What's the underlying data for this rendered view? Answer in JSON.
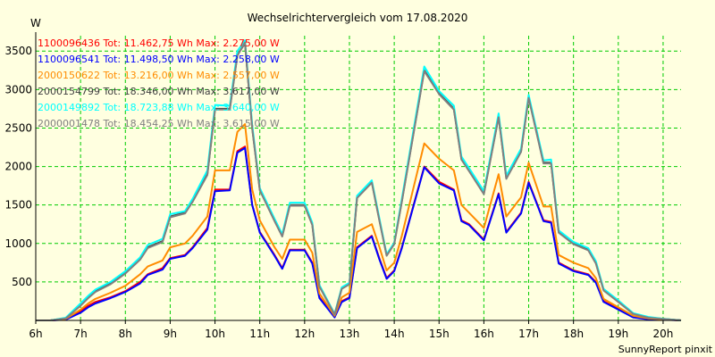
{
  "chart_data": {
    "type": "line",
    "title": "Wechselrichtervergleich vom 17.08.2020",
    "ylabel": "W",
    "xlabel": "",
    "footer": "SunnyReport pinxit",
    "ylim": [
      0,
      3700
    ],
    "xlim": [
      6.0,
      20.4
    ],
    "grid": true,
    "yticks": [
      500,
      1000,
      1500,
      2000,
      2500,
      3000,
      3500
    ],
    "xticks": [
      {
        "value": 6,
        "label": "6h"
      },
      {
        "value": 7,
        "label": "7h"
      },
      {
        "value": 8,
        "label": "8h"
      },
      {
        "value": 9,
        "label": "9h"
      },
      {
        "value": 10,
        "label": "10h"
      },
      {
        "value": 11,
        "label": "11h"
      },
      {
        "value": 12,
        "label": "12h"
      },
      {
        "value": 13,
        "label": "13h"
      },
      {
        "value": 14,
        "label": "14h"
      },
      {
        "value": 15,
        "label": "15h"
      },
      {
        "value": 16,
        "label": "16h"
      },
      {
        "value": 17,
        "label": "17h"
      },
      {
        "value": 18,
        "label": "18h"
      },
      {
        "value": 19,
        "label": "19h"
      },
      {
        "value": 20,
        "label": "20h"
      }
    ],
    "x": [
      6.0,
      6.33,
      6.67,
      7.0,
      7.17,
      7.33,
      7.67,
      8.0,
      8.33,
      8.5,
      8.83,
      9.0,
      9.33,
      9.5,
      9.83,
      10.0,
      10.33,
      10.5,
      10.67,
      10.83,
      11.0,
      11.33,
      11.5,
      11.67,
      12.0,
      12.17,
      12.33,
      12.67,
      12.83,
      13.0,
      13.17,
      13.5,
      13.67,
      13.83,
      14.0,
      14.17,
      14.67,
      15.0,
      15.33,
      15.5,
      15.67,
      16.0,
      16.33,
      16.5,
      16.83,
      17.0,
      17.33,
      17.5,
      17.67,
      18.0,
      18.33,
      18.5,
      18.67,
      19.0,
      19.33,
      19.67,
      20.0,
      20.4
    ],
    "series": [
      {
        "name": "1100096436",
        "text": "1100096436 Tot: 11.462,75 Wh Max: 2.275,00 W",
        "color": "#ff0000",
        "values": [
          0,
          0,
          15,
          120,
          190,
          240,
          300,
          380,
          500,
          600,
          680,
          810,
          850,
          950,
          1200,
          1700,
          1700,
          2200,
          2260,
          1500,
          1150,
          850,
          680,
          920,
          920,
          750,
          300,
          50,
          250,
          300,
          950,
          1100,
          800,
          550,
          650,
          950,
          2000,
          1800,
          1700,
          1300,
          1250,
          1050,
          1650,
          1150,
          1400,
          1800,
          1300,
          1280,
          750,
          650,
          600,
          500,
          250,
          150,
          50,
          20,
          15,
          0
        ]
      },
      {
        "name": "1100096541",
        "text": "1100096541 Tot: 11.498,50 Wh Max: 2.258,00 W",
        "color": "#0000ff",
        "values": [
          0,
          0,
          10,
          100,
          170,
          220,
          290,
          370,
          480,
          590,
          660,
          800,
          840,
          940,
          1180,
          1680,
          1690,
          2180,
          2240,
          1500,
          1140,
          840,
          670,
          910,
          910,
          740,
          290,
          40,
          240,
          290,
          940,
          1090,
          790,
          540,
          640,
          940,
          1990,
          1780,
          1690,
          1290,
          1240,
          1040,
          1640,
          1140,
          1390,
          1790,
          1290,
          1270,
          740,
          640,
          590,
          490,
          240,
          140,
          40,
          15,
          10,
          0
        ]
      },
      {
        "name": "2000150622",
        "text": "2000150622 Tot: 13.216,00 Wh Max: 2.557,00 W",
        "color": "#ff8c00",
        "values": [
          0,
          0,
          20,
          140,
          220,
          280,
          360,
          450,
          600,
          700,
          780,
          950,
          1000,
          1100,
          1350,
          1950,
          1950,
          2450,
          2550,
          1700,
          1300,
          950,
          800,
          1050,
          1050,
          880,
          350,
          60,
          300,
          360,
          1150,
          1250,
          950,
          650,
          750,
          1100,
          2300,
          2100,
          1950,
          1500,
          1400,
          1200,
          1900,
          1350,
          1600,
          2050,
          1480,
          1480,
          850,
          750,
          680,
          550,
          280,
          170,
          60,
          25,
          15,
          0
        ]
      },
      {
        "name": "2000154799",
        "text": "2000154799 Tot: 18.346,00 Wh Max: 3.617,00 W",
        "color": "#404040",
        "values": [
          0,
          0,
          30,
          200,
          300,
          380,
          480,
          620,
          800,
          950,
          1030,
          1350,
          1400,
          1550,
          1900,
          2750,
          2750,
          3450,
          3600,
          2500,
          1700,
          1300,
          1100,
          1500,
          1500,
          1250,
          450,
          80,
          420,
          480,
          1600,
          1800,
          1300,
          850,
          1000,
          1550,
          3250,
          2950,
          2750,
          2100,
          1950,
          1650,
          2650,
          1850,
          2200,
          2900,
          2050,
          2050,
          1150,
          1000,
          920,
          750,
          400,
          250,
          90,
          40,
          20,
          0
        ]
      },
      {
        "name": "2000149892",
        "text": "2000149892 Tot: 18.723,88 Wh Max: 3.640,00 W",
        "color": "#00ffff",
        "values": [
          0,
          0,
          35,
          220,
          320,
          400,
          500,
          640,
          820,
          980,
          1060,
          1380,
          1420,
          1580,
          1950,
          2800,
          2790,
          3500,
          3640,
          2540,
          1720,
          1320,
          1120,
          1530,
          1530,
          1270,
          460,
          85,
          430,
          490,
          1620,
          1820,
          1320,
          860,
          1010,
          1580,
          3300,
          2980,
          2790,
          2130,
          1980,
          1680,
          2690,
          1880,
          2230,
          2930,
          2080,
          2090,
          1170,
          1020,
          940,
          770,
          410,
          260,
          95,
          45,
          22,
          0
        ]
      },
      {
        "name": "2000001478",
        "text": "2000001478 Tot: 18.454,25 Wh Max: 3.615,00 W",
        "color": "#808080",
        "values": [
          0,
          0,
          25,
          190,
          290,
          370,
          470,
          610,
          790,
          940,
          1020,
          1340,
          1390,
          1540,
          1890,
          2740,
          2740,
          3440,
          3610,
          2490,
          1690,
          1290,
          1090,
          1490,
          1490,
          1240,
          440,
          75,
          410,
          470,
          1590,
          1790,
          1290,
          840,
          990,
          1540,
          3240,
          2940,
          2740,
          2090,
          1940,
          1640,
          2640,
          1840,
          2190,
          2890,
          2040,
          2040,
          1140,
          990,
          910,
          740,
          390,
          240,
          85,
          35,
          18,
          0
        ]
      }
    ]
  }
}
